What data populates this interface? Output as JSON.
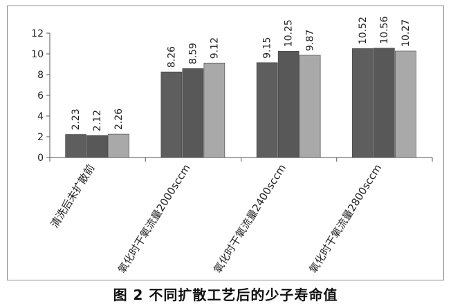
{
  "caption": "图 2 不同扩散工艺后的少子寿命值",
  "chart_data": {
    "type": "bar",
    "categories": [
      "清洗后未扩散前",
      "氧化时干氧流量2000sccm",
      "氧化时干氧流量2400sccm",
      "氧化时干氧流量2800sccm"
    ],
    "series": [
      {
        "values": [
          2.23,
          8.26,
          9.15,
          10.52
        ],
        "color": "#5e5e5e"
      },
      {
        "values": [
          2.12,
          8.59,
          10.25,
          10.56
        ],
        "color": "#585858"
      },
      {
        "values": [
          2.26,
          9.12,
          9.87,
          10.27
        ],
        "color": "#a9a9a9"
      }
    ],
    "ylim": [
      0,
      12
    ],
    "yticks": [
      0,
      2,
      4,
      6,
      8,
      10,
      12
    ],
    "ytick_labels": [
      "0",
      "2",
      "4",
      "6",
      "8",
      "10",
      "12"
    ],
    "data_labels": [
      [
        "2.23",
        "8.26",
        "9.15",
        "10.52"
      ],
      [
        "2.12",
        "8.59",
        "10.25",
        "10.56"
      ],
      [
        "2.26",
        "9.12",
        "9.87",
        "10.27"
      ]
    ],
    "grid": false,
    "legend": "none"
  }
}
